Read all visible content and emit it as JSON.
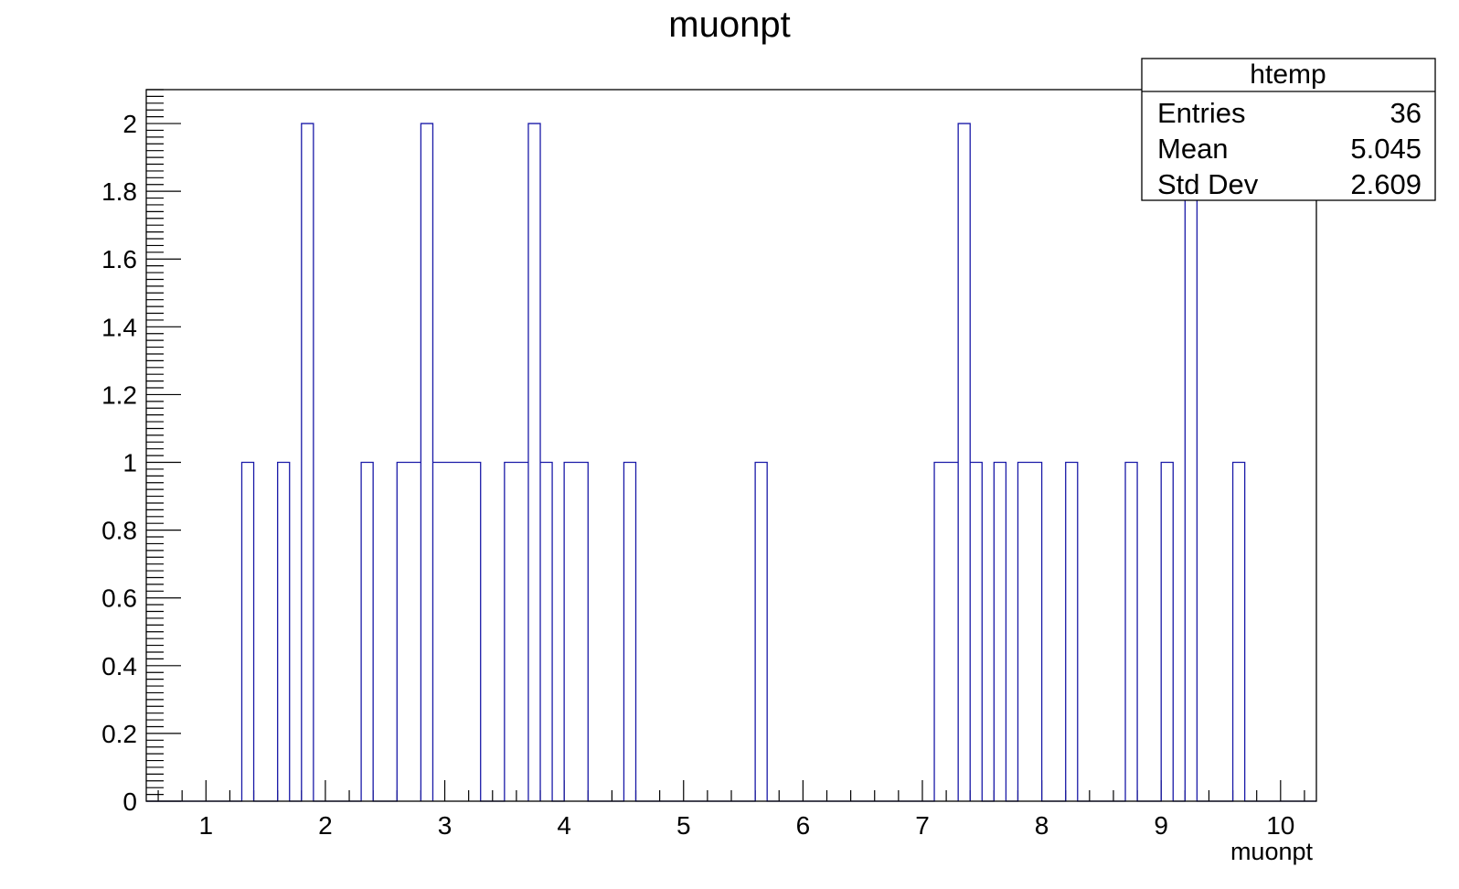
{
  "colors": {
    "histogram_line": "#1a1aa8",
    "axis": "#000000",
    "background": "#ffffff"
  },
  "chart_data": {
    "type": "bar",
    "title": "muonpt",
    "xlabel": "muonpt",
    "ylabel": "",
    "xlim": [
      0.5,
      10.3
    ],
    "ylim": [
      0,
      2.1
    ],
    "grid": false,
    "bin_width": 0.1,
    "x_ticks": [
      1,
      2,
      3,
      4,
      5,
      6,
      7,
      8,
      9,
      10
    ],
    "y_ticks": [
      0,
      0.2,
      0.4,
      0.6,
      0.8,
      1,
      1.2,
      1.4,
      1.6,
      1.8,
      2
    ],
    "y_tick_labels": [
      "0",
      "0.2",
      "0.4",
      "0.6",
      "0.8",
      "1",
      "1.2",
      "1.4",
      "1.6",
      "1.8",
      "2"
    ],
    "bins": [
      {
        "low": 1.3,
        "high": 1.4,
        "count": 1
      },
      {
        "low": 1.6,
        "high": 1.7,
        "count": 1
      },
      {
        "low": 1.8,
        "high": 1.9,
        "count": 2
      },
      {
        "low": 2.3,
        "high": 2.4,
        "count": 1
      },
      {
        "low": 2.6,
        "high": 2.8,
        "count": 1
      },
      {
        "low": 2.8,
        "high": 2.9,
        "count": 2
      },
      {
        "low": 2.9,
        "high": 3.3,
        "count": 1
      },
      {
        "low": 3.5,
        "high": 3.7,
        "count": 1
      },
      {
        "low": 3.7,
        "high": 3.8,
        "count": 2
      },
      {
        "low": 3.8,
        "high": 3.9,
        "count": 1
      },
      {
        "low": 4.0,
        "high": 4.2,
        "count": 1
      },
      {
        "low": 4.5,
        "high": 4.6,
        "count": 1
      },
      {
        "low": 5.6,
        "high": 5.7,
        "count": 1
      },
      {
        "low": 7.1,
        "high": 7.3,
        "count": 1
      },
      {
        "low": 7.3,
        "high": 7.4,
        "count": 2
      },
      {
        "low": 7.4,
        "high": 7.5,
        "count": 1
      },
      {
        "low": 7.6,
        "high": 7.7,
        "count": 1
      },
      {
        "low": 7.8,
        "high": 8.0,
        "count": 1
      },
      {
        "low": 8.2,
        "high": 8.3,
        "count": 1
      },
      {
        "low": 8.7,
        "high": 8.8,
        "count": 1
      },
      {
        "low": 9.0,
        "high": 9.1,
        "count": 1
      },
      {
        "low": 9.2,
        "high": 9.3,
        "count": 2
      },
      {
        "low": 9.6,
        "high": 9.7,
        "count": 1
      }
    ],
    "legend": {
      "position": "top-right",
      "title": "htemp",
      "rows": [
        {
          "label": "Entries",
          "value": "36"
        },
        {
          "label": "Mean",
          "value": "5.045"
        },
        {
          "label": "Std Dev",
          "value": "2.609"
        }
      ]
    }
  }
}
